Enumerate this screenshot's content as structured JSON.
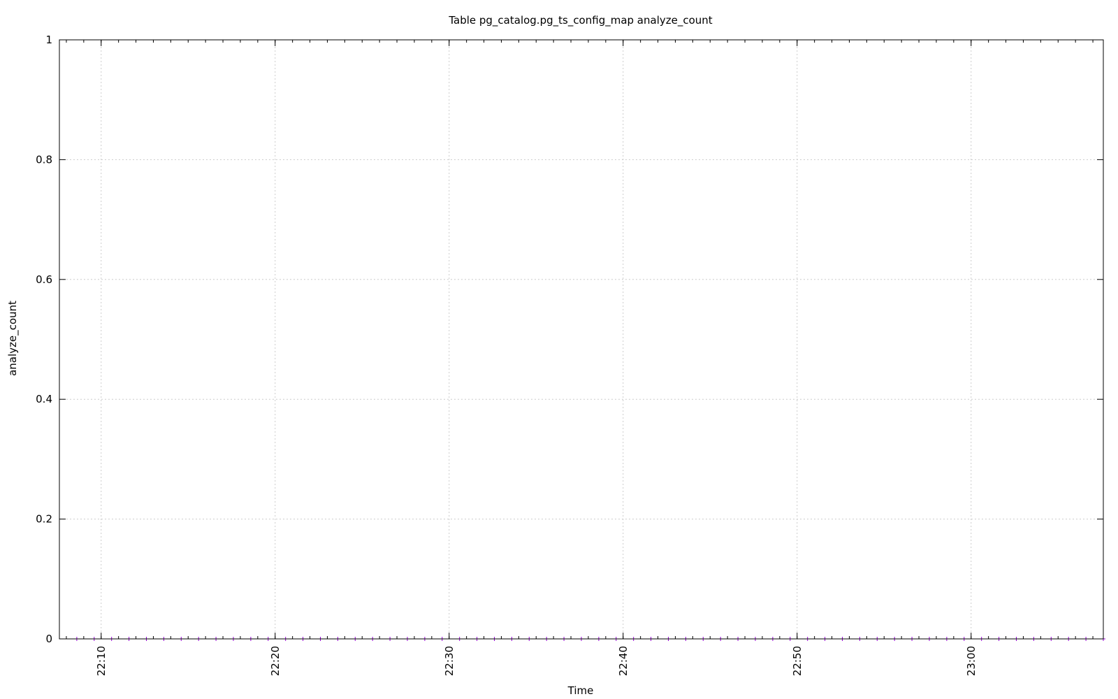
{
  "chart_data": {
    "type": "scatter",
    "title": "Table pg_catalog.pg_ts_config_map analyze_count",
    "xlabel": "Time",
    "ylabel": "analyze_count",
    "xlim": [
      "22:07:36",
      "23:07:36"
    ],
    "ylim": [
      0,
      1
    ],
    "x_ticks": [
      "22:10",
      "22:20",
      "22:30",
      "22:40",
      "22:50",
      "23:00"
    ],
    "y_ticks": [
      "0",
      "0.2",
      "0.4",
      "0.6",
      "0.8",
      "1"
    ],
    "grid": true,
    "series": [
      {
        "color": "#9400d3",
        "marker": "+",
        "x": [
          "22:08:36",
          "22:09:36",
          "22:10:36",
          "22:11:36",
          "22:12:36",
          "22:13:36",
          "22:14:36",
          "22:15:36",
          "22:16:36",
          "22:17:36",
          "22:18:36",
          "22:19:36",
          "22:20:36",
          "22:21:36",
          "22:22:36",
          "22:23:36",
          "22:24:36",
          "22:25:36",
          "22:26:36",
          "22:27:36",
          "22:28:36",
          "22:29:36",
          "22:30:36",
          "22:31:36",
          "22:32:36",
          "22:33:36",
          "22:34:36",
          "22:35:36",
          "22:36:36",
          "22:37:36",
          "22:38:36",
          "22:39:36",
          "22:40:36",
          "22:41:36",
          "22:42:36",
          "22:43:36",
          "22:44:36",
          "22:45:36",
          "22:46:36",
          "22:47:36",
          "22:48:36",
          "22:49:36",
          "22:50:36",
          "22:51:36",
          "22:52:36",
          "22:53:36",
          "22:54:36",
          "22:55:36",
          "22:56:36",
          "22:57:36",
          "22:58:36",
          "22:59:36",
          "23:00:36",
          "23:01:36",
          "23:02:36",
          "23:03:36",
          "23:04:36",
          "23:05:36",
          "23:06:36",
          "23:07:36"
        ],
        "values": [
          0,
          0,
          0,
          0,
          0,
          0,
          0,
          0,
          0,
          0,
          0,
          0,
          0,
          0,
          0,
          0,
          0,
          0,
          0,
          0,
          0,
          0,
          0,
          0,
          0,
          0,
          0,
          0,
          0,
          0,
          0,
          0,
          0,
          0,
          0,
          0,
          0,
          0,
          0,
          0,
          0,
          0,
          0,
          0,
          0,
          0,
          0,
          0,
          0,
          0,
          0,
          0,
          0,
          0,
          0,
          0,
          0,
          0,
          0,
          0
        ]
      }
    ]
  }
}
